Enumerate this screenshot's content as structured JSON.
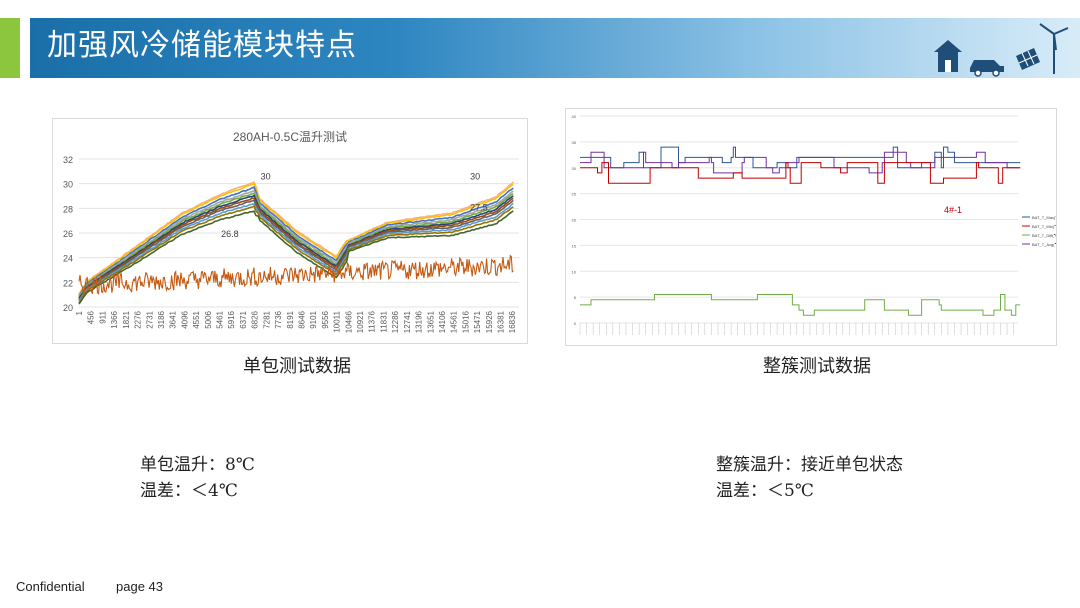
{
  "header": {
    "title": "加强风冷储能模块特点"
  },
  "left_chart": {
    "caption": "单包测试数据",
    "chart_data": {
      "type": "line",
      "title": "280AH-0.5C温升测试",
      "ylim": [
        20,
        32
      ],
      "yticks": [
        "20",
        "22",
        "24",
        "26",
        "28",
        "30",
        "32"
      ],
      "xticks": [
        "1",
        "456",
        "911",
        "1366",
        "1821",
        "2276",
        "2731",
        "3186",
        "3641",
        "4096",
        "4551",
        "5006",
        "5461",
        "5916",
        "6371",
        "6826",
        "7281",
        "7736",
        "8191",
        "8646",
        "9101",
        "9556",
        "10011",
        "10466",
        "10921",
        "11376",
        "11831",
        "12286",
        "12741",
        "13196",
        "13651",
        "14106",
        "14561",
        "15016",
        "15471",
        "15926",
        "16381",
        "16836"
      ],
      "annotations": [
        {
          "text": "30",
          "x": 6826,
          "y": 30
        },
        {
          "text": "26.8",
          "x": 5600,
          "y": 26.8
        },
        {
          "text": "30",
          "x": 15900,
          "y": 30
        },
        {
          "text": "27.5",
          "x": 15900,
          "y": 27.5
        }
      ],
      "series_colors": [
        "#f4b183",
        "#ffc000",
        "#4472c4",
        "#a5a5a5",
        "#70ad47",
        "#264478",
        "#9e480e",
        "#636363",
        "#5b9bd5",
        "#997300",
        "#43682b",
        "#c55a11"
      ]
    }
  },
  "right_chart": {
    "caption": "整簇测试数据",
    "chart_data": {
      "type": "line",
      "ylim": [
        0,
        40
      ],
      "yticks": [
        "0",
        "5",
        "10",
        "15",
        "20",
        "25",
        "30",
        "35",
        "40"
      ],
      "annotation": "4#-1",
      "legend": [
        "BAT_T_Max(℃)",
        "BAT_T_Min(℃)",
        "BAT_T_Diff(℃)",
        "BAT_T_Avg(℃)"
      ],
      "legend_colors": [
        "#2f5597",
        "#c00000",
        "#70ad47",
        "#7030a0"
      ]
    }
  },
  "notes_left": {
    "line1": "单包温升：8℃",
    "line2": "温差：＜4℃"
  },
  "notes_right": {
    "line1": "整簇温升：接近单包状态",
    "line2": "温差：＜5℃"
  },
  "footer": {
    "confidential": "Confidential",
    "page": "page 43"
  }
}
